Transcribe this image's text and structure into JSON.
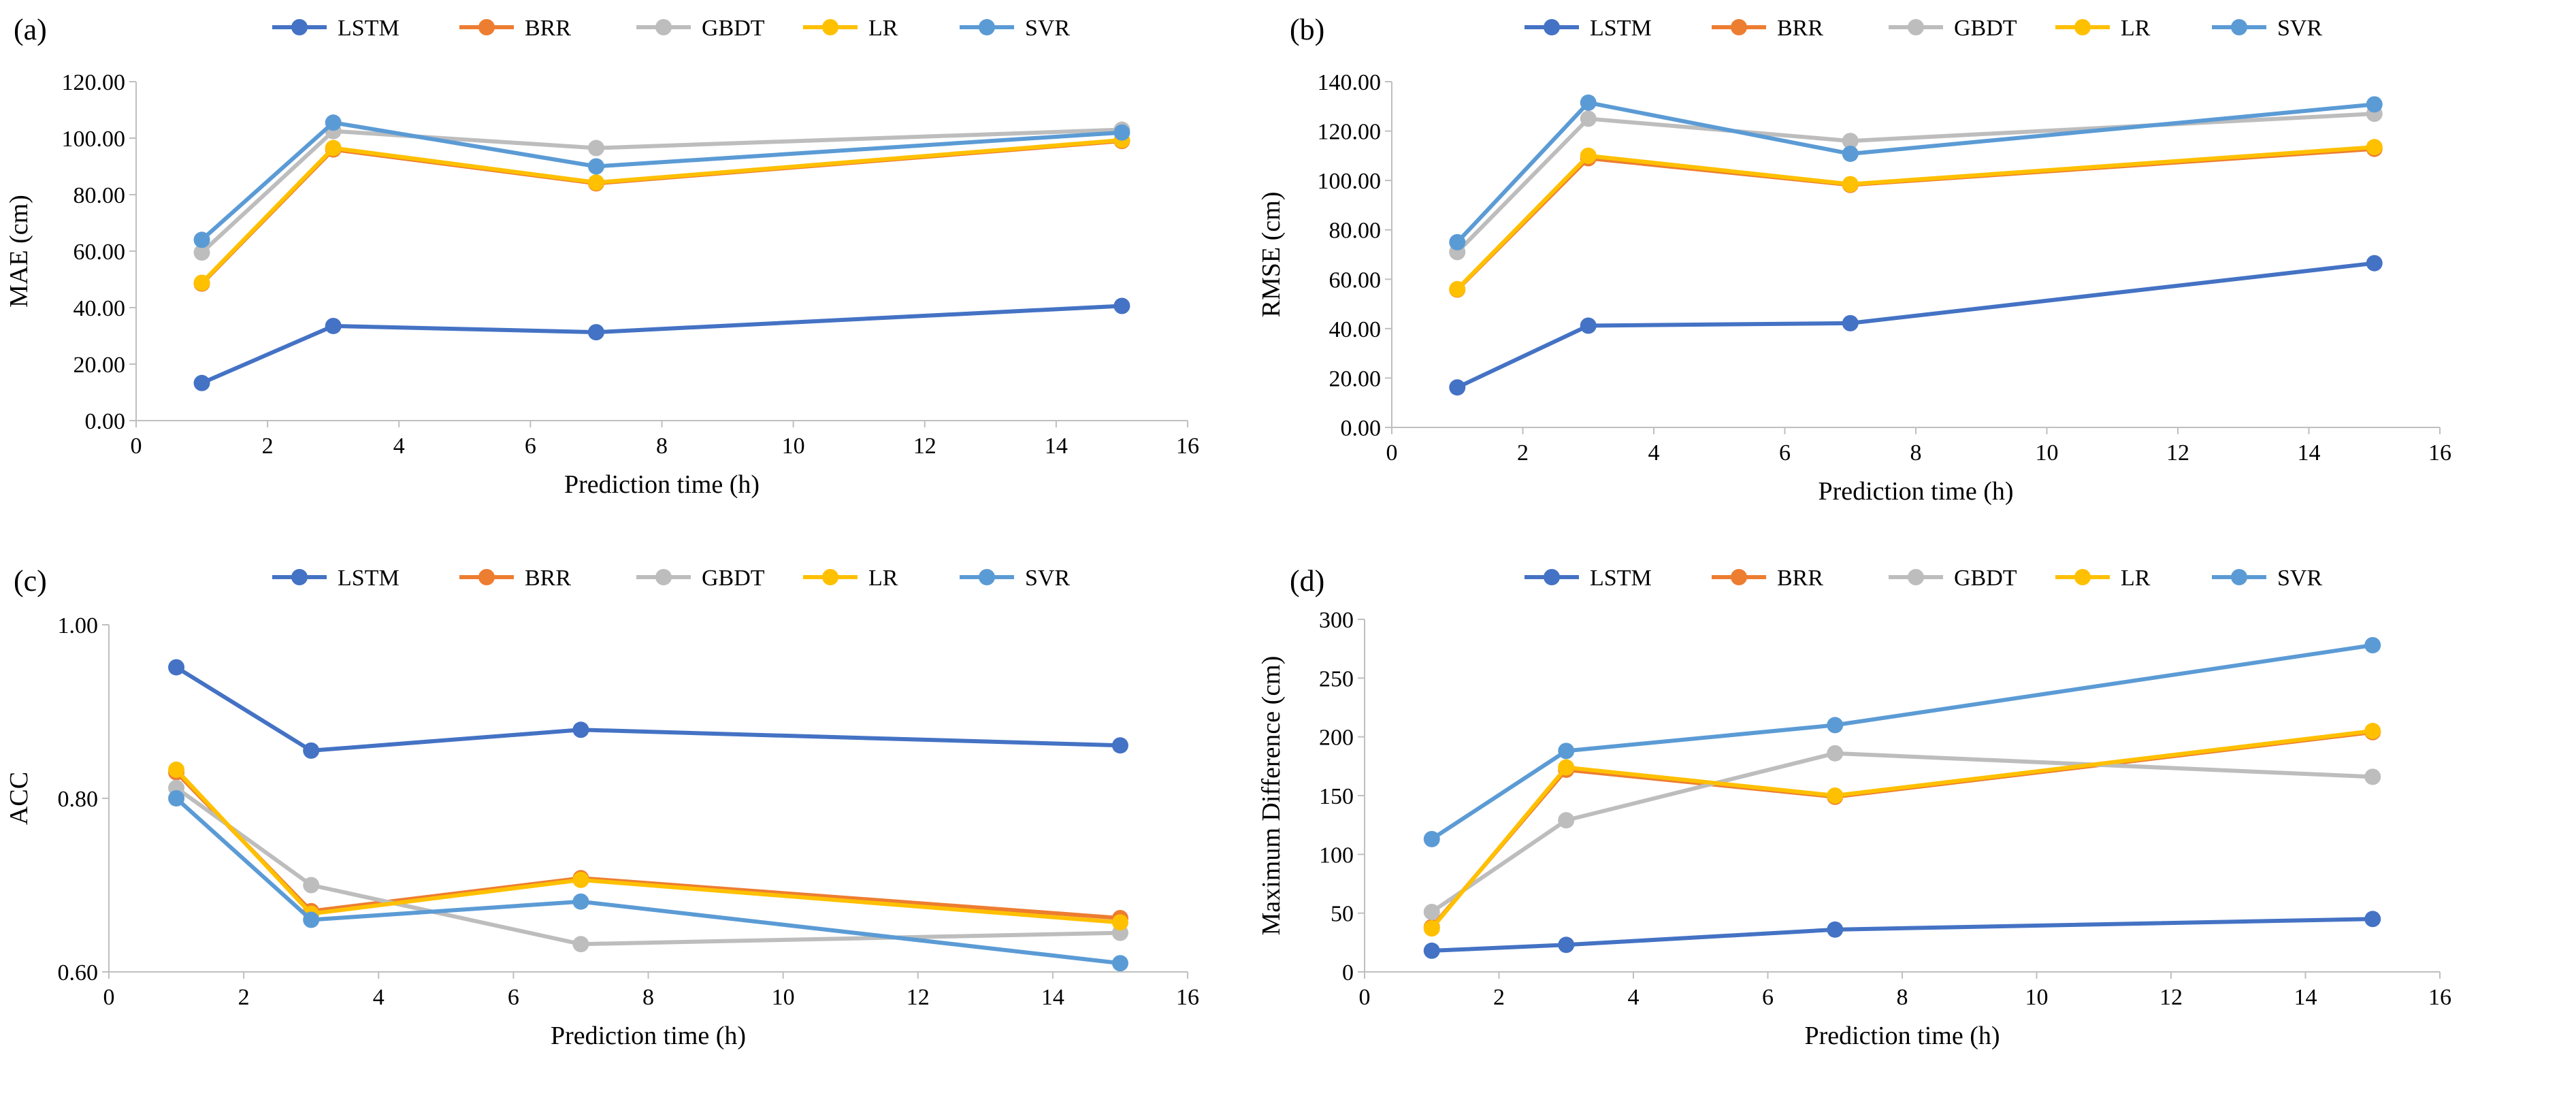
{
  "figure": {
    "colors": {
      "LSTM": "#4472c4",
      "BRR": "#ed7d31",
      "GBDT": "#bdbdbd",
      "LR": "#ffc000",
      "SVR": "#5b9bd5"
    }
  },
  "chart_data": [
    {
      "type": "line",
      "panel_label": "(a)",
      "title": "",
      "xlabel": "Prediction time (h)",
      "ylabel": "MAE (cm)",
      "x": [
        1,
        3,
        7,
        15
      ],
      "xlim": [
        0,
        16
      ],
      "ylim": [
        0,
        120
      ],
      "x_ticks": [
        0,
        2,
        4,
        6,
        8,
        10,
        12,
        14,
        16
      ],
      "x_tick_labels": [
        "0",
        "2",
        "4",
        "6",
        "8",
        "10",
        "12",
        "14",
        "16"
      ],
      "y_ticks": [
        0,
        20,
        40,
        60,
        80,
        100,
        120
      ],
      "y_tick_labels": [
        "0.00",
        "20.00",
        "40.00",
        "60.00",
        "80.00",
        "100.00",
        "120.00"
      ],
      "grid": false,
      "legend": "top",
      "series": [
        {
          "name": "LSTM",
          "values": [
            13.3,
            33.5,
            31.3,
            40.6
          ]
        },
        {
          "name": "BRR",
          "values": [
            48.5,
            96.0,
            84.0,
            99.0
          ]
        },
        {
          "name": "GBDT",
          "values": [
            59.5,
            102.5,
            96.5,
            103.0
          ]
        },
        {
          "name": "LR",
          "values": [
            48.8,
            96.5,
            84.3,
            99.3
          ]
        },
        {
          "name": "SVR",
          "values": [
            64.0,
            105.5,
            90.0,
            102.0
          ]
        }
      ]
    },
    {
      "type": "line",
      "panel_label": "(b)",
      "title": "",
      "xlabel": "Prediction time (h)",
      "ylabel": "RMSE (cm)",
      "x": [
        1,
        3,
        7,
        15
      ],
      "xlim": [
        0,
        16
      ],
      "ylim": [
        0,
        140
      ],
      "x_ticks": [
        0,
        2,
        4,
        6,
        8,
        10,
        12,
        14,
        16
      ],
      "x_tick_labels": [
        "0",
        "2",
        "4",
        "6",
        "8",
        "10",
        "12",
        "14",
        "16"
      ],
      "y_ticks": [
        0,
        20,
        40,
        60,
        80,
        100,
        120,
        140
      ],
      "y_tick_labels": [
        "0.00",
        "20.00",
        "40.00",
        "60.00",
        "80.00",
        "100.00",
        "120.00",
        "140.00"
      ],
      "grid": false,
      "legend": "top",
      "series": [
        {
          "name": "LSTM",
          "values": [
            16.2,
            41.2,
            42.2,
            66.5
          ]
        },
        {
          "name": "BRR",
          "values": [
            55.8,
            109.0,
            98.2,
            112.8
          ]
        },
        {
          "name": "GBDT",
          "values": [
            71.0,
            125.0,
            116.0,
            127.0
          ]
        },
        {
          "name": "LR",
          "values": [
            56.0,
            110.0,
            98.5,
            113.5
          ]
        },
        {
          "name": "SVR",
          "values": [
            75.0,
            131.5,
            110.8,
            130.8
          ]
        }
      ]
    },
    {
      "type": "line",
      "panel_label": "(c)",
      "title": "",
      "xlabel": "Prediction time (h)",
      "ylabel": "ACC",
      "x": [
        1,
        3,
        7,
        15
      ],
      "xlim": [
        0,
        16
      ],
      "ylim": [
        0.6,
        1.0
      ],
      "x_ticks": [
        0,
        2,
        4,
        6,
        8,
        10,
        12,
        14,
        16
      ],
      "x_tick_labels": [
        "0",
        "2",
        "4",
        "6",
        "8",
        "10",
        "12",
        "14",
        "16"
      ],
      "y_ticks": [
        0.6,
        0.8,
        1.0
      ],
      "y_tick_labels": [
        "0.60",
        "0.80",
        "1.00"
      ],
      "grid": false,
      "legend": "top",
      "series": [
        {
          "name": "LSTM",
          "values": [
            0.951,
            0.855,
            0.879,
            0.861
          ]
        },
        {
          "name": "BRR",
          "values": [
            0.83,
            0.67,
            0.708,
            0.662
          ]
        },
        {
          "name": "GBDT",
          "values": [
            0.812,
            0.7,
            0.632,
            0.645
          ]
        },
        {
          "name": "LR",
          "values": [
            0.833,
            0.667,
            0.706,
            0.657
          ]
        },
        {
          "name": "SVR",
          "values": [
            0.8,
            0.66,
            0.681,
            0.61
          ]
        }
      ]
    },
    {
      "type": "line",
      "panel_label": "(d)",
      "title": "",
      "xlabel": "Prediction time (h)",
      "ylabel": "Maximum Difference (cm)",
      "x": [
        1,
        3,
        7,
        15
      ],
      "xlim": [
        0,
        16
      ],
      "ylim": [
        0,
        300
      ],
      "x_ticks": [
        0,
        2,
        4,
        6,
        8,
        10,
        12,
        14,
        16
      ],
      "x_tick_labels": [
        "0",
        "2",
        "4",
        "6",
        "8",
        "10",
        "12",
        "14",
        "16"
      ],
      "y_ticks": [
        0,
        50,
        100,
        150,
        200,
        250,
        300
      ],
      "y_tick_labels": [
        "0",
        "50",
        "100",
        "150",
        "200",
        "250",
        "300"
      ],
      "grid": false,
      "legend": "top",
      "series": [
        {
          "name": "LSTM",
          "values": [
            18,
            23,
            36,
            45
          ]
        },
        {
          "name": "BRR",
          "values": [
            38,
            172,
            149,
            204
          ]
        },
        {
          "name": "GBDT",
          "values": [
            51,
            129,
            186,
            166
          ]
        },
        {
          "name": "LR",
          "values": [
            37,
            174,
            150,
            205
          ]
        },
        {
          "name": "SVR",
          "values": [
            113,
            188,
            210,
            278
          ]
        }
      ]
    }
  ]
}
